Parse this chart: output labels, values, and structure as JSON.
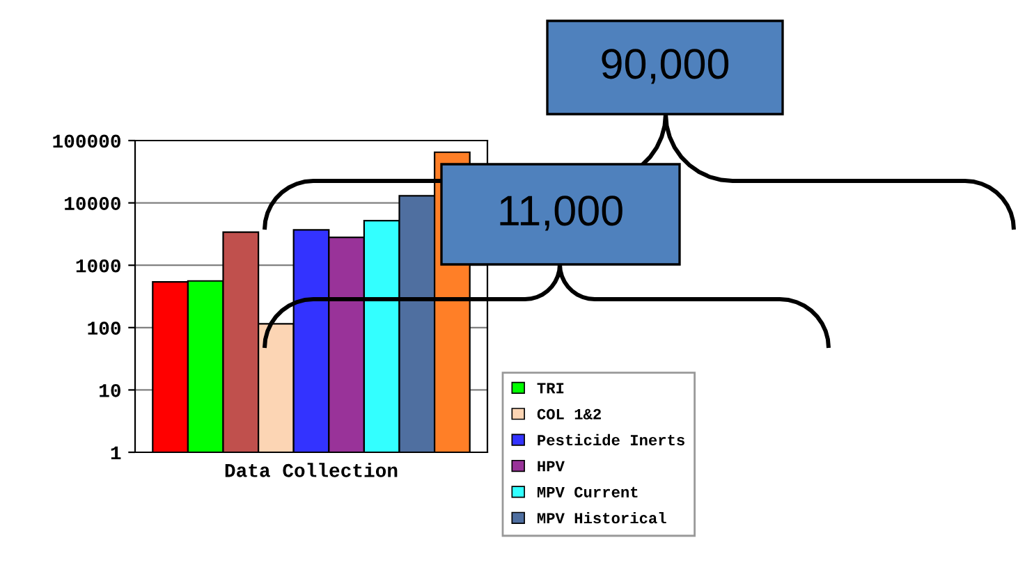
{
  "chart_data": {
    "type": "bar",
    "xlabel": "Data Collection",
    "categories": [
      null
    ],
    "series": [
      {
        "color": "#ff0000",
        "values": [
          540
        ]
      },
      {
        "name": "TRI",
        "color": "#00ff00",
        "values": [
          560
        ]
      },
      {
        "color": "#c0504d",
        "values": [
          3400
        ]
      },
      {
        "name": "COL 1&2",
        "color": "#fcd5b4",
        "values": [
          115
        ]
      },
      {
        "name": "Pesticide Inerts",
        "color": "#3333ff",
        "values": [
          3700
        ]
      },
      {
        "name": "HPV",
        "color": "#993399",
        "values": [
          2800
        ]
      },
      {
        "name": "MPV Current",
        "color": "#33ffff",
        "values": [
          5200
        ]
      },
      {
        "name": "MPV Historical",
        "color": "#4f6fa0",
        "values": [
          13000
        ]
      },
      {
        "color": "#ff7f27",
        "values": [
          65000
        ]
      }
    ],
    "log": true,
    "ylim": [
      1,
      100000
    ],
    "yticks": [
      1,
      10,
      100,
      1000,
      10000,
      100000
    ],
    "grid": "y",
    "legend": "right",
    "annotations": [
      "90,000",
      "11,000"
    ]
  }
}
